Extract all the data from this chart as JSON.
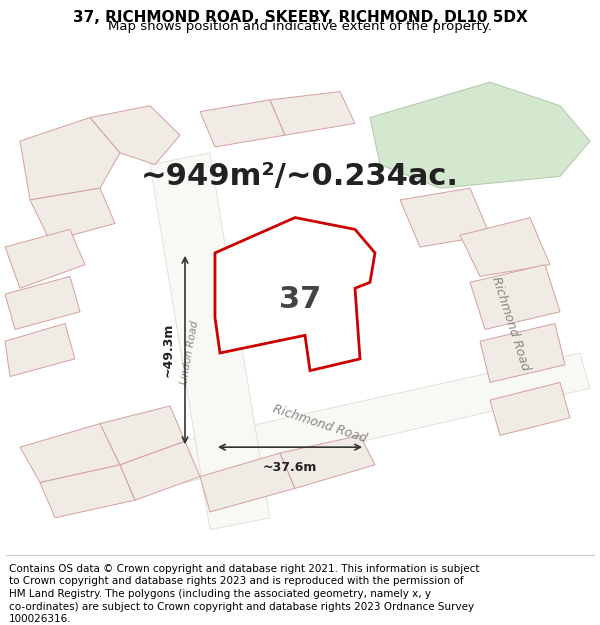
{
  "title_line1": "37, RICHMOND ROAD, SKEEBY, RICHMOND, DL10 5DX",
  "title_line2": "Map shows position and indicative extent of the property.",
  "area_text": "~949m²/~0.234ac.",
  "property_number": "37",
  "dim1_label": "~49.3m",
  "dim2_label": "~37.6m",
  "road_label1": "Richmond Road",
  "road_label2": "Lindon Road",
  "road_label3": "Richmond Road",
  "footer_lines": [
    "Contains OS data © Crown copyright and database right 2021. This information is subject",
    "to Crown copyright and database rights 2023 and is reproduced with the permission of",
    "HM Land Registry. The polygons (including the associated geometry, namely x, y",
    "co-ordinates) are subject to Crown copyright and database rights 2023 Ordnance Survey",
    "100026316."
  ],
  "map_bg": "#f0ede8",
  "property_fill": "#ffffff",
  "property_edge": "#cc0000",
  "green_fill": "#d4e8d0",
  "green_edge": "#b8ccb0",
  "dim_line_color": "#333333",
  "title_fontsize": 11,
  "subtitle_fontsize": 9.5,
  "area_fontsize": 22,
  "footer_fontsize": 7.5
}
